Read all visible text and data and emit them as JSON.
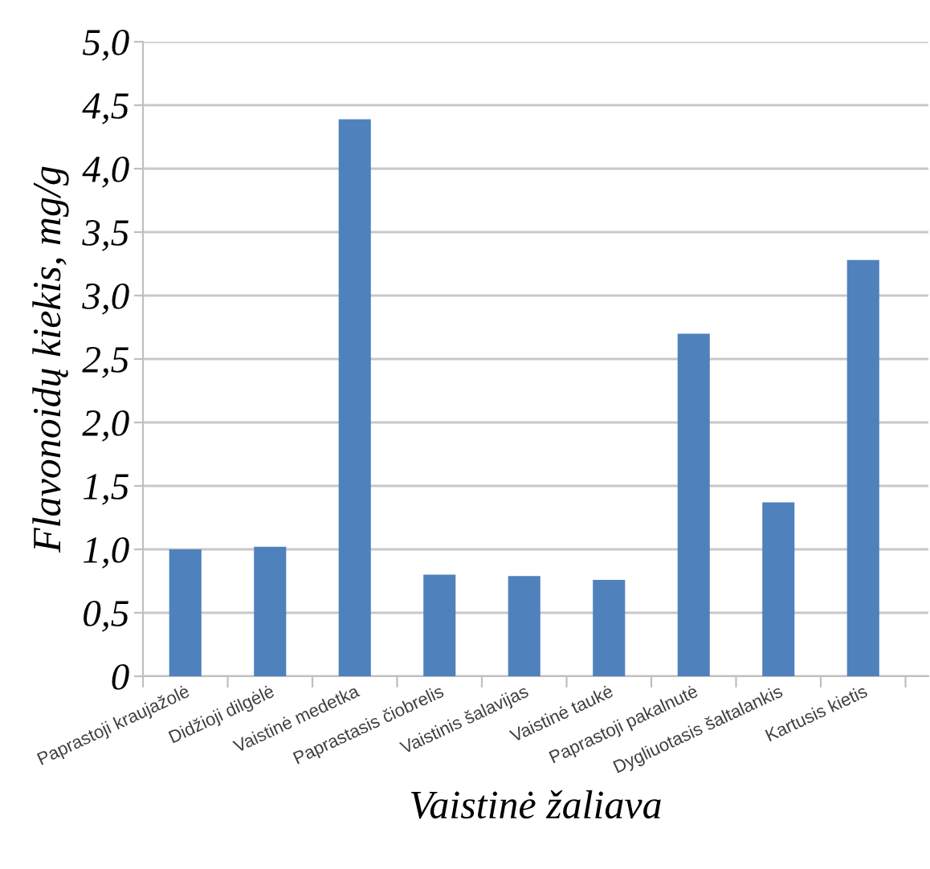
{
  "chart_data": {
    "type": "bar",
    "xlabel": "Vaistinė žaliava",
    "ylabel": "Flavonoidų kiekis, mg/g",
    "categories": [
      "Paprastoji kraujažolė",
      "Didžioji dilgėlė",
      "Vaistinė medetka",
      "Paprastasis čiobrelis",
      "Vaistinis šalavijas",
      "Vaistinė taukė",
      "Paprastoji pakalnutė",
      "Dygliuotasis šaltalankis",
      "Kartusis kietis"
    ],
    "values": [
      1.0,
      1.02,
      4.39,
      0.8,
      0.79,
      0.76,
      2.7,
      1.37,
      3.28
    ],
    "color": "#4f81bd",
    "ylim": [
      0,
      5
    ],
    "yticks": [
      0,
      {
        "value": 0.5,
        "label": "0,5"
      },
      {
        "value": 1,
        "label": "1,0"
      },
      {
        "value": 1.5,
        "label": "1,5"
      },
      {
        "value": 2,
        "label": "2,0"
      },
      {
        "value": 2.5,
        "label": "2,5"
      },
      {
        "value": 3,
        "label": "3,0"
      },
      {
        "value": 3.5,
        "label": "3,5"
      },
      {
        "value": 4,
        "label": "4,0"
      },
      {
        "value": 4.5,
        "label": "4,5"
      },
      {
        "value": 5,
        "label": "5,0"
      }
    ],
    "grid": "y"
  }
}
